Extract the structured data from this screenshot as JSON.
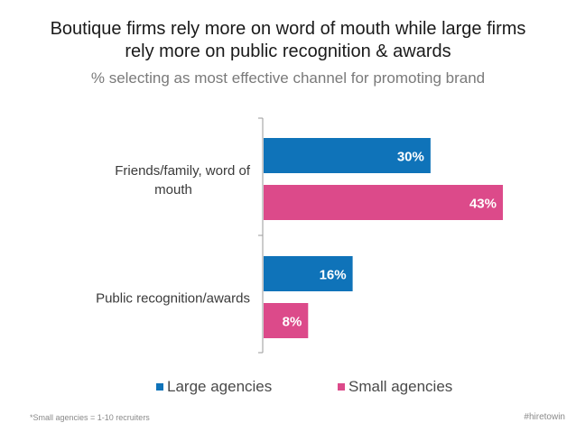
{
  "title_lines": [
    "Boutique firms rely more on word of mouth while large firms",
    "rely more on public recognition & awards"
  ],
  "subtitle": "% selecting as most effective channel for promoting brand",
  "chart_data": {
    "type": "bar",
    "orientation": "horizontal",
    "title": "Boutique firms rely more on word of mouth while large firms rely more on public recognition & awards",
    "subtitle": "% selecting as most effective channel for promoting brand",
    "categories": [
      [
        "Friends/family, word of",
        "mouth"
      ],
      [
        "Public recognition/awards"
      ]
    ],
    "series": [
      {
        "name": "Large agencies",
        "color": "#0f73b9",
        "values": [
          30,
          16
        ],
        "labels": [
          "30%",
          "16%"
        ]
      },
      {
        "name": "Small agencies",
        "color": "#dc4a8a",
        "values": [
          43,
          8
        ],
        "labels": [
          "43%",
          "8%"
        ]
      }
    ],
    "xlim": [
      0,
      50
    ],
    "grid": false,
    "legend_position": "bottom"
  },
  "legend": [
    {
      "label": "Large agencies",
      "color": "#0f73b9"
    },
    {
      "label": "Small agencies",
      "color": "#dc4a8a"
    }
  ],
  "footnote": "*Small agencies = 1-10 recruiters",
  "hashtag": "#hiretowin"
}
